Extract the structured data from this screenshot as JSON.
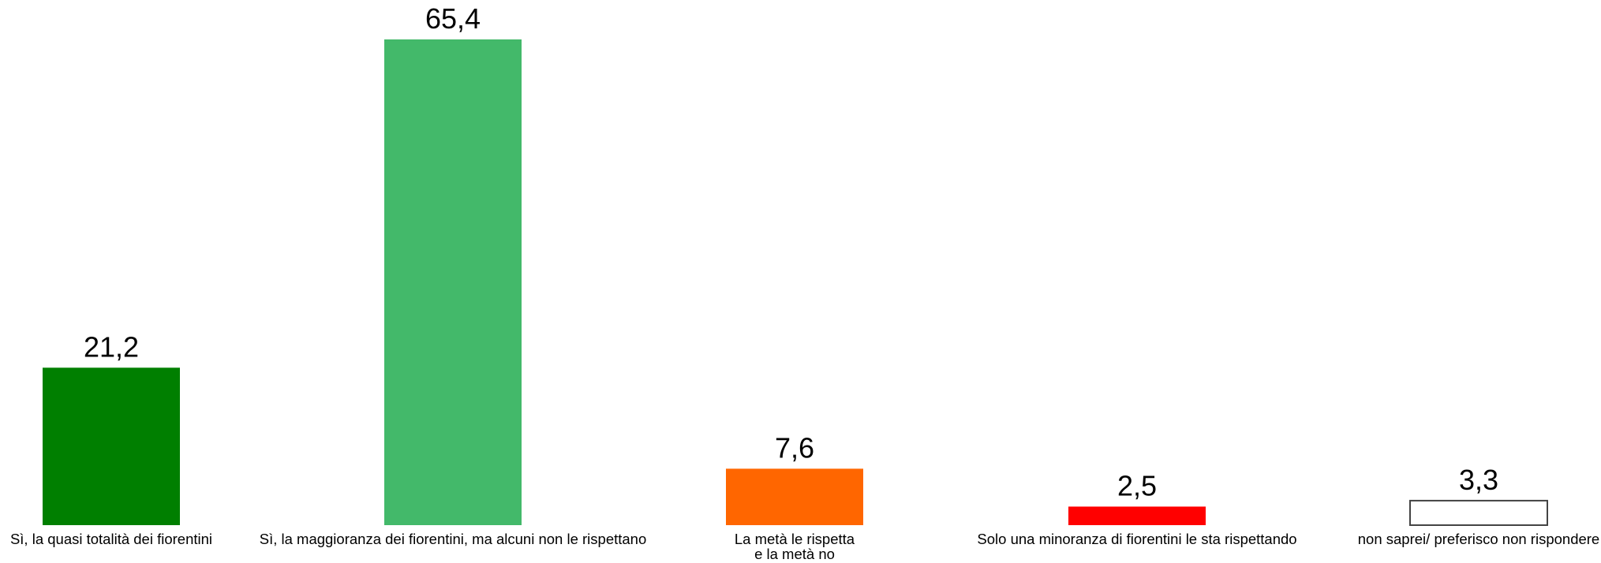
{
  "chart_data": {
    "type": "bar",
    "categories": [
      [
        "Sì, la quasi totalità dei fiorentini"
      ],
      [
        "Sì, la maggioranza dei fiorentini, ma alcuni non le rispettano"
      ],
      [
        "La metà le rispetta",
        "e la metà no"
      ],
      [
        "Solo una minoranza di fiorentini le sta rispettando"
      ],
      [
        "non saprei/ preferisco non rispondere"
      ]
    ],
    "values": [
      21.2,
      65.4,
      7.6,
      2.5,
      3.3
    ],
    "value_labels": [
      "21,2",
      "65,4",
      "7,6",
      "2,5",
      "3,3"
    ],
    "colors": [
      "#007f00",
      "#43b96a",
      "#ff6600",
      "#ff0000",
      "#ffffff"
    ],
    "title": "",
    "xlabel": "",
    "ylabel": "",
    "ylim": [
      0,
      65.4
    ],
    "grid": false,
    "legend": "none"
  }
}
